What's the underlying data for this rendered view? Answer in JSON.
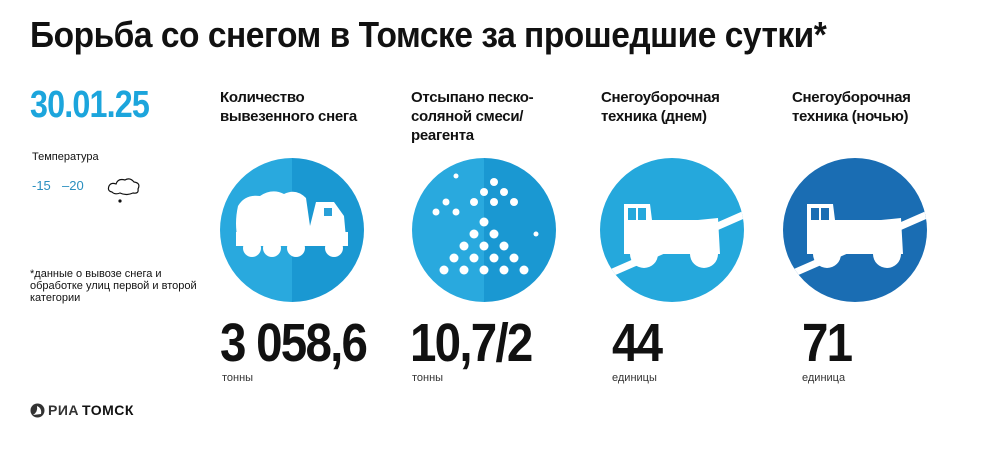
{
  "title": "Борьба со снегом в Томске за прошедшие сутки*",
  "date": "30.01.25",
  "temperature": {
    "label": "Температура",
    "day": "-15",
    "night": "–20",
    "weather_icon": "cloud-snow-icon"
  },
  "footnote": "*данные о вывозе снега и обработке улиц первой и второй категории",
  "logo": {
    "part1": "РИА",
    "part2": "ТОМСК"
  },
  "colors": {
    "accent": "#1ca5dc",
    "circle_light": "#29a9de",
    "circle_light_shade": "#1a98d2",
    "circle_dark": "#1a6db3"
  },
  "stats": [
    {
      "heading": "Количество вывезенного снега",
      "value": "3 058,6",
      "unit": "тонны",
      "icon": "dump-truck-icon"
    },
    {
      "heading": "Отсыпано песко-соляной смеси/реагента",
      "value": "10,7/2",
      "unit": "тонны",
      "icon": "sand-dots-icon"
    },
    {
      "heading": "Снегоуборочная техника (днем)",
      "value": "44",
      "unit": "единицы",
      "icon": "snow-plow-icon"
    },
    {
      "heading": "Снегоуборочная техника (ночью)",
      "value": "71",
      "unit": "единица",
      "icon": "snow-plow-icon"
    }
  ]
}
